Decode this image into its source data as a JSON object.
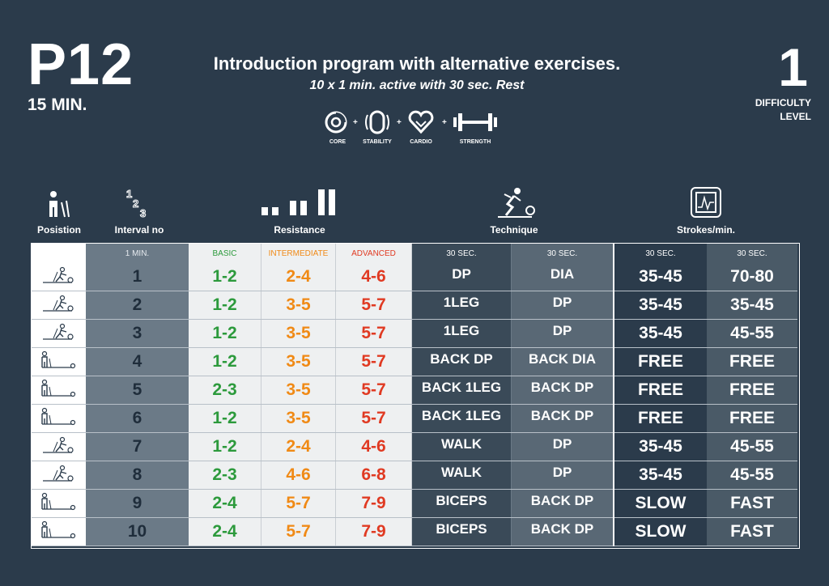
{
  "program": {
    "code": "P12",
    "duration": "15 MIN."
  },
  "title": "Introduction program with alternative exercises.",
  "subtitle": "10 x 1 min. active with 30 sec. Rest",
  "difficulty": {
    "value": "1",
    "label_line1": "DIFFICULTY",
    "label_line2": "LEVEL"
  },
  "focus": [
    {
      "label": "CORE",
      "icon": "core-icon"
    },
    {
      "label": "STABILITY",
      "icon": "stability-icon"
    },
    {
      "label": "CARDIO",
      "icon": "cardio-icon"
    },
    {
      "label": "STRENGTH",
      "icon": "strength-icon"
    }
  ],
  "focus_separator": "+",
  "headers": {
    "position": "Posistion",
    "interval": "Interval no",
    "resistance": "Resistance",
    "technique": "Technique",
    "strokes": "Strokes/min."
  },
  "columns": {
    "interval": "1 MIN.",
    "basic": "BASIC",
    "intermediate": "INTERMEDIATE",
    "advanced": "ADVANCED",
    "tech1": "30 SEC.",
    "tech2": "30 SEC.",
    "str1": "30 SEC.",
    "str2": "30 SEC."
  },
  "colors": {
    "background": "#2b3b4b",
    "basic": "#2c9a3c",
    "intermediate": "#f08a16",
    "advanced": "#e03a22"
  },
  "rows": [
    {
      "position": "skiing",
      "no": "1",
      "basic": "1-2",
      "intermediate": "2-4",
      "advanced": "4-6",
      "tech1": "DP",
      "tech2": "DIA",
      "str1": "35-45",
      "str2": "70-80"
    },
    {
      "position": "skiing",
      "no": "2",
      "basic": "1-2",
      "intermediate": "3-5",
      "advanced": "5-7",
      "tech1": "1LEG",
      "tech2": "DP",
      "str1": "35-45",
      "str2": "35-45"
    },
    {
      "position": "skiing",
      "no": "3",
      "basic": "1-2",
      "intermediate": "3-5",
      "advanced": "5-7",
      "tech1": "1LEG",
      "tech2": "DP",
      "str1": "35-45",
      "str2": "45-55"
    },
    {
      "position": "standing",
      "no": "4",
      "basic": "1-2",
      "intermediate": "3-5",
      "advanced": "5-7",
      "tech1": "BACK DP",
      "tech2": "BACK DIA",
      "str1": "FREE",
      "str2": "FREE"
    },
    {
      "position": "standing",
      "no": "5",
      "basic": "2-3",
      "intermediate": "3-5",
      "advanced": "5-7",
      "tech1": "BACK 1LEG",
      "tech2": "BACK DP",
      "str1": "FREE",
      "str2": "FREE"
    },
    {
      "position": "standing",
      "no": "6",
      "basic": "1-2",
      "intermediate": "3-5",
      "advanced": "5-7",
      "tech1": "BACK 1LEG",
      "tech2": "BACK DP",
      "str1": "FREE",
      "str2": "FREE"
    },
    {
      "position": "skiing",
      "no": "7",
      "basic": "1-2",
      "intermediate": "2-4",
      "advanced": "4-6",
      "tech1": "WALK",
      "tech2": "DP",
      "str1": "35-45",
      "str2": "45-55"
    },
    {
      "position": "skiing",
      "no": "8",
      "basic": "2-3",
      "intermediate": "4-6",
      "advanced": "6-8",
      "tech1": "WALK",
      "tech2": "DP",
      "str1": "35-45",
      "str2": "45-55"
    },
    {
      "position": "standing",
      "no": "9",
      "basic": "2-4",
      "intermediate": "5-7",
      "advanced": "7-9",
      "tech1": "BICEPS",
      "tech2": "BACK DP",
      "str1": "SLOW",
      "str2": "FAST"
    },
    {
      "position": "standing",
      "no": "10",
      "basic": "2-4",
      "intermediate": "5-7",
      "advanced": "7-9",
      "tech1": "BICEPS",
      "tech2": "BACK DP",
      "str1": "SLOW",
      "str2": "FAST"
    }
  ]
}
